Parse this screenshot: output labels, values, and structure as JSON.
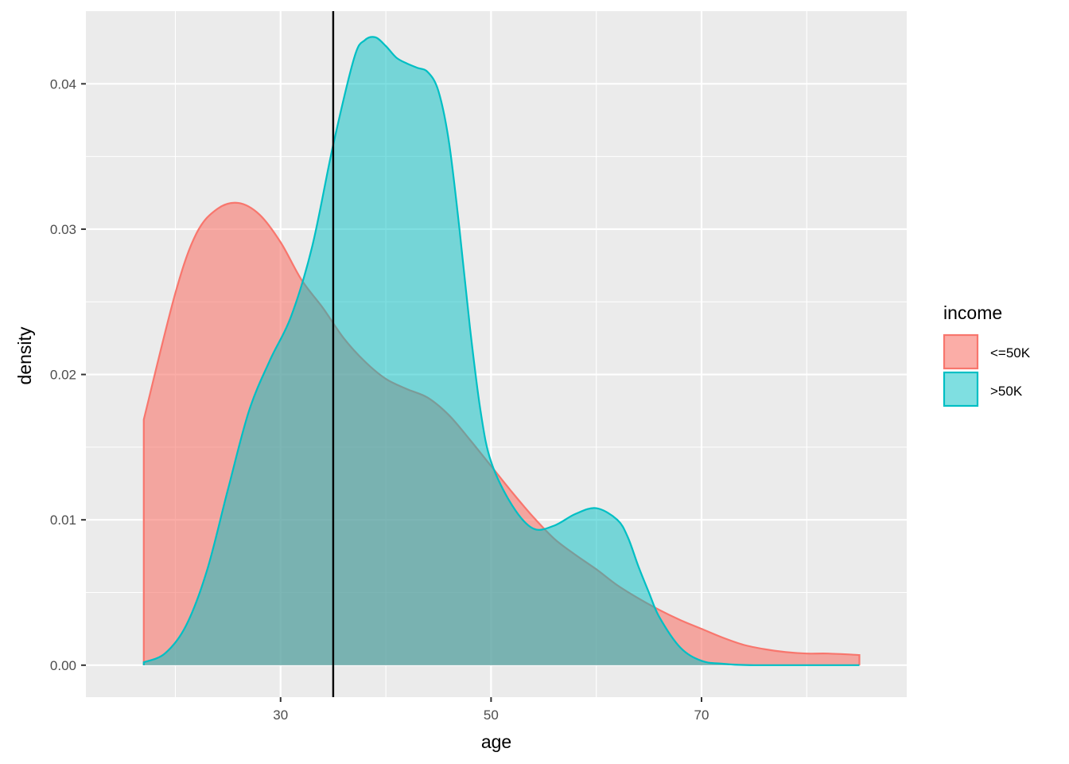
{
  "chart_data": {
    "type": "area",
    "subtype": "density",
    "title": "",
    "xlabel": "age",
    "ylabel": "density",
    "xlim": [
      11.5,
      89.5
    ],
    "ylim": [
      -0.0022,
      0.045
    ],
    "x_ticks": [
      30,
      50,
      70
    ],
    "x_tick_labels": [
      "30",
      "50",
      "70"
    ],
    "y_ticks": [
      0.0,
      0.01,
      0.02,
      0.03,
      0.04
    ],
    "y_tick_labels": [
      "0.00",
      "0.01",
      "0.02",
      "0.03",
      "0.04"
    ],
    "grid": true,
    "legend": {
      "title": "income",
      "position": "right"
    },
    "vline": {
      "x": 35,
      "color": "#000000"
    },
    "series": [
      {
        "name": "<=50K",
        "line_color": "#F8766D",
        "fill_color": "#F8766D",
        "fill_opacity": 0.6,
        "points": [
          [
            17,
            0.0169
          ],
          [
            20,
            0.0256
          ],
          [
            22,
            0.0297
          ],
          [
            24,
            0.0314
          ],
          [
            26,
            0.0318
          ],
          [
            28,
            0.031
          ],
          [
            30,
            0.0291
          ],
          [
            32,
            0.0265
          ],
          [
            34,
            0.0246
          ],
          [
            36,
            0.0225
          ],
          [
            38,
            0.0209
          ],
          [
            40,
            0.0197
          ],
          [
            42,
            0.019
          ],
          [
            44,
            0.0184
          ],
          [
            46,
            0.0172
          ],
          [
            48,
            0.0155
          ],
          [
            50,
            0.0137
          ],
          [
            52,
            0.0119
          ],
          [
            54,
            0.0102
          ],
          [
            56,
            0.0087
          ],
          [
            58,
            0.0076
          ],
          [
            60,
            0.0066
          ],
          [
            62,
            0.0055
          ],
          [
            64,
            0.0046
          ],
          [
            66,
            0.0038
          ],
          [
            68,
            0.0031
          ],
          [
            70,
            0.0025
          ],
          [
            72,
            0.0019
          ],
          [
            74,
            0.0014
          ],
          [
            76,
            0.0011
          ],
          [
            78,
            0.0009
          ],
          [
            80,
            0.0008
          ],
          [
            82,
            0.0008
          ],
          [
            85,
            0.0007
          ]
        ]
      },
      {
        "name": ">50K",
        "line_color": "#00BFC4",
        "fill_color": "#00BFC4",
        "fill_opacity": 0.5,
        "points": [
          [
            17,
            0.0002
          ],
          [
            19,
            0.0008
          ],
          [
            21,
            0.0027
          ],
          [
            23,
            0.0065
          ],
          [
            25,
            0.0121
          ],
          [
            27,
            0.0175
          ],
          [
            29,
            0.021
          ],
          [
            31,
            0.024
          ],
          [
            33,
            0.0288
          ],
          [
            35,
            0.0358
          ],
          [
            37,
            0.0418
          ],
          [
            38,
            0.043
          ],
          [
            39,
            0.0432
          ],
          [
            40,
            0.0426
          ],
          [
            41,
            0.0418
          ],
          [
            42,
            0.0414
          ],
          [
            43,
            0.0411
          ],
          [
            44,
            0.0408
          ],
          [
            45,
            0.0395
          ],
          [
            46,
            0.036
          ],
          [
            47,
            0.03
          ],
          [
            48,
            0.0232
          ],
          [
            49,
            0.0175
          ],
          [
            50,
            0.014
          ],
          [
            52,
            0.011
          ],
          [
            54,
            0.0094
          ],
          [
            56,
            0.0096
          ],
          [
            58,
            0.0104
          ],
          [
            60,
            0.0108
          ],
          [
            62,
            0.01
          ],
          [
            63,
            0.0088
          ],
          [
            64,
            0.0068
          ],
          [
            65,
            0.005
          ],
          [
            66,
            0.0033
          ],
          [
            68,
            0.0012
          ],
          [
            70,
            0.0003
          ],
          [
            72,
            0.0001
          ],
          [
            75,
            0.0
          ],
          [
            85,
            0.0
          ]
        ]
      }
    ]
  }
}
